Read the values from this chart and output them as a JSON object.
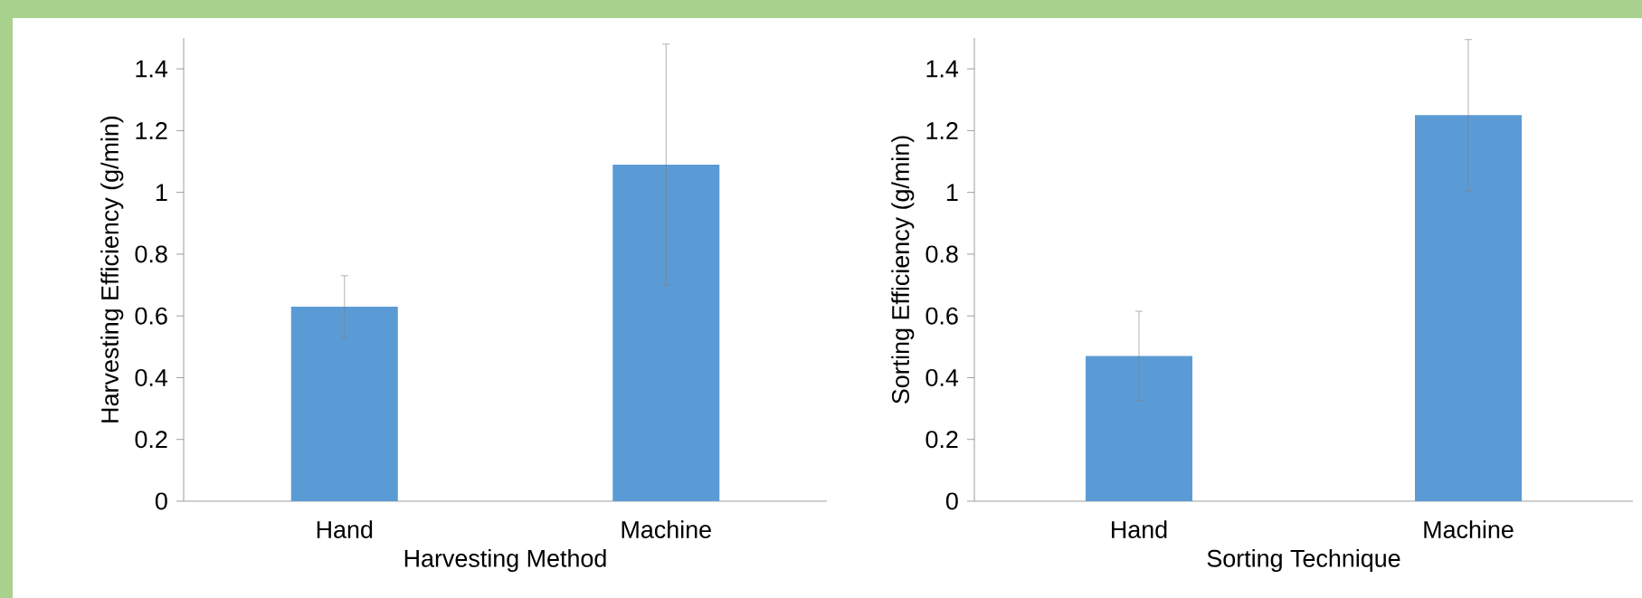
{
  "chart_data": [
    {
      "type": "bar",
      "categories": [
        "Hand",
        "Machine"
      ],
      "values": [
        0.63,
        1.09
      ],
      "errors": [
        0.1,
        0.39
      ],
      "color": "#5b9bd5",
      "xlabel": "Harvesting Method",
      "ylabel": "Harvesting Efficiency (g/min)",
      "ylim": [
        0,
        1.5
      ],
      "yticks": [
        0,
        0.2,
        0.4,
        0.6,
        0.8,
        1,
        1.2,
        1.4
      ]
    },
    {
      "type": "bar",
      "categories": [
        "Hand",
        "Machine"
      ],
      "values": [
        0.47,
        1.25
      ],
      "errors": [
        0.145,
        0.245
      ],
      "color": "#5b9bd5",
      "xlabel": "Sorting Technique",
      "ylabel": "Sorting Efficiency (g/min)",
      "ylim": [
        0,
        1.5
      ],
      "yticks": [
        0,
        0.2,
        0.4,
        0.6,
        0.8,
        1,
        1.2,
        1.4
      ]
    }
  ]
}
